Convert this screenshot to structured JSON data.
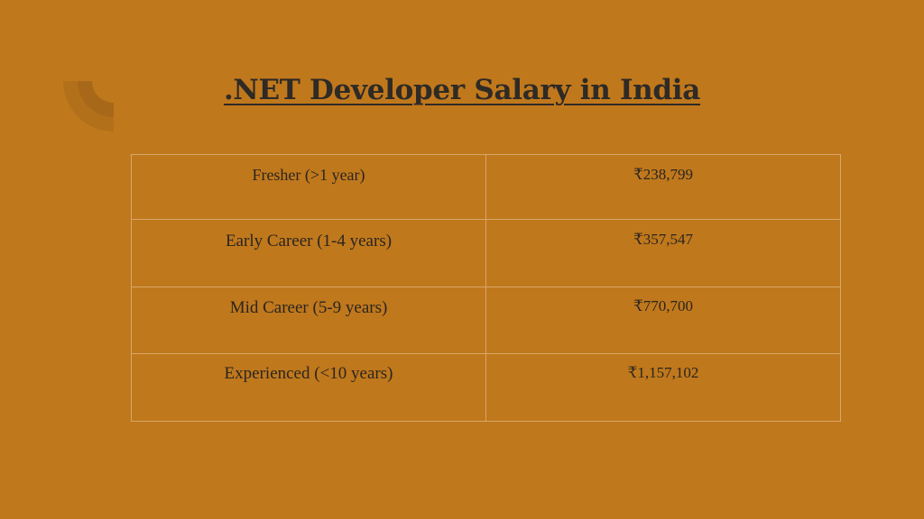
{
  "slide": {
    "title": ".NET Developer Salary in India",
    "background_color": "#c0781c",
    "decoration_icon": "quarter-circle-arc-icon"
  },
  "salary_table": {
    "rows": [
      {
        "level": "Fresher (>1 year)",
        "salary": "₹238,799"
      },
      {
        "level": "Early Career (1-4 years)",
        "salary": "₹357,547"
      },
      {
        "level": "Mid Career (5-9 years)",
        "salary": "₹770,700"
      },
      {
        "level": "Experienced (<10 years)",
        "salary": "₹1,157,102"
      }
    ]
  }
}
